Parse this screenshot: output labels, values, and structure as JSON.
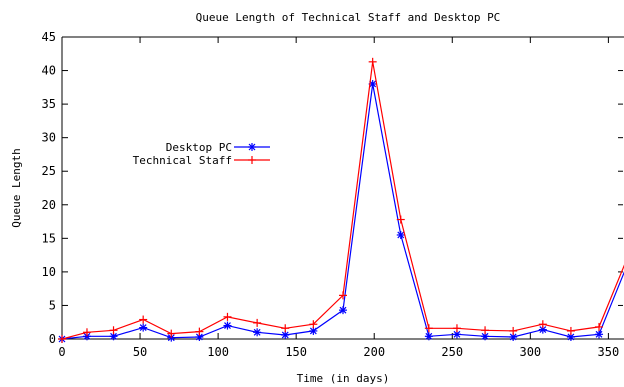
{
  "chart_data": {
    "type": "line",
    "title": "Queue Length of Technical Staff and Desktop PC",
    "xlabel": "Time (in days)",
    "ylabel": "Queue Length",
    "xlim": [
      0,
      360
    ],
    "ylim": [
      0,
      45
    ],
    "x_ticks": [
      0,
      50,
      100,
      150,
      200,
      250,
      300,
      350
    ],
    "y_ticks": [
      0,
      5,
      10,
      15,
      20,
      25,
      30,
      35,
      40,
      45
    ],
    "x_tick_labels": [
      "0",
      "50",
      "100",
      "150",
      "200",
      "250",
      "300",
      "350"
    ],
    "y_tick_labels": [
      "0",
      "5",
      "10",
      "15",
      "20",
      "25",
      "30",
      "35",
      "40",
      "45"
    ],
    "legend_position": "middle-left",
    "grid": false,
    "series": [
      {
        "name": "Desktop PC",
        "color": "#0000ff",
        "marker": "asterisk",
        "x": [
          0,
          16,
          33,
          52,
          70,
          88,
          106,
          125,
          143,
          161,
          180,
          199,
          217,
          235,
          253,
          271,
          289,
          308,
          326,
          344,
          362
        ],
        "y": [
          0,
          0.4,
          0.4,
          1.7,
          0.2,
          0.3,
          2.0,
          1.0,
          0.6,
          1.2,
          4.3,
          38.0,
          15.5,
          0.4,
          0.7,
          0.4,
          0.3,
          1.4,
          0.3,
          0.7,
          11.0
        ]
      },
      {
        "name": "Technical Staff",
        "color": "#ff0000",
        "marker": "plus",
        "x": [
          0,
          16,
          33,
          52,
          70,
          88,
          106,
          125,
          143,
          161,
          180,
          199,
          217,
          235,
          253,
          271,
          289,
          308,
          326,
          344,
          362
        ],
        "y": [
          0,
          1.0,
          1.3,
          2.9,
          0.8,
          1.1,
          3.3,
          2.4,
          1.6,
          2.2,
          6.5,
          41.3,
          17.8,
          1.6,
          1.6,
          1.3,
          1.2,
          2.2,
          1.2,
          1.8,
          12.0
        ]
      }
    ]
  }
}
